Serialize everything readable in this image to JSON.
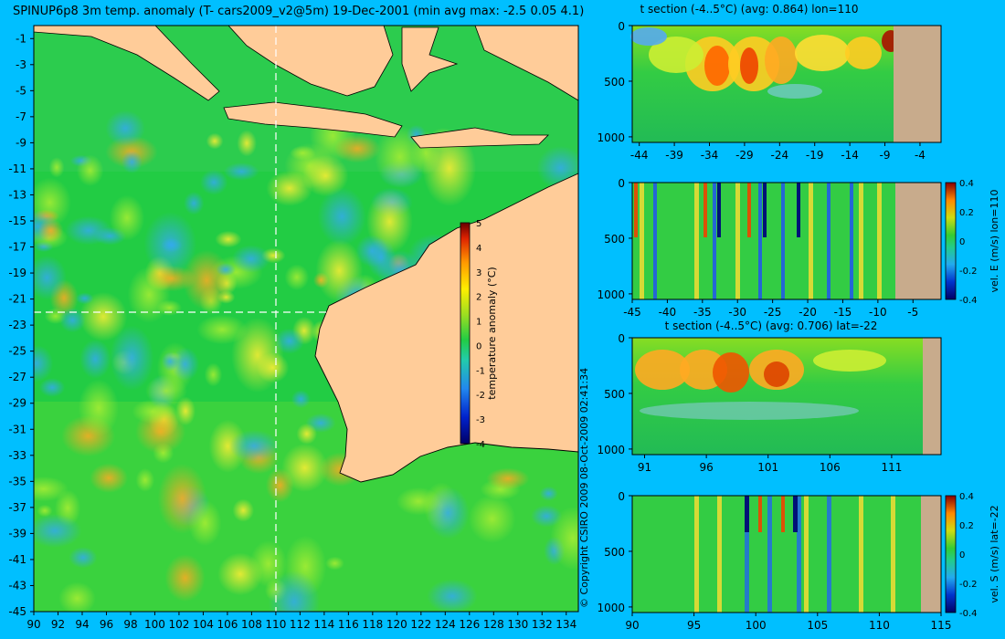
{
  "main_title": "SPINUP6p8 3m temp. anomaly (T- cars2009_v2@5m) 19-Dec-2001 (min avg max: -2.5 0.05 4.1)",
  "copyright": "© Copyright CSIRO 2009  08-Oct-2009 02:41:34",
  "colors": {
    "background": "#00bfff",
    "land": "#ffcc99",
    "ocean_base": "#22cc44",
    "section_land": "#c8ab8c",
    "crosshair": "#ffffff"
  },
  "chart_data": [
    {
      "type": "heatmap",
      "title": "SPINUP6p8 3m temp. anomaly (T- cars2009_v2@5m) 19-Dec-2001 (min avg max: -2.5 0.05 4.1)",
      "x_ticks": [
        "90",
        "92",
        "94",
        "96",
        "98",
        "100",
        "102",
        "104",
        "106",
        "108",
        "110",
        "112",
        "114",
        "116",
        "118",
        "120",
        "122",
        "124",
        "126",
        "128",
        "130",
        "132",
        "134"
      ],
      "y_ticks": [
        "-1",
        "-3",
        "-5",
        "-7",
        "-9",
        "-11",
        "-13",
        "-15",
        "-17",
        "-19",
        "-21",
        "-23",
        "-25",
        "-27",
        "-29",
        "-31",
        "-33",
        "-35",
        "-37",
        "-39",
        "-41",
        "-43",
        "-45"
      ],
      "xlim": [
        90,
        135
      ],
      "ylim": [
        -45,
        0
      ],
      "crosshair": {
        "lon": 110,
        "lat": -22
      },
      "colorbar": {
        "label": "temperature anomaly (°C)",
        "ticks": [
          "5",
          "4",
          "3",
          "2",
          "1",
          "0",
          "-1",
          "-2",
          "-3",
          "-4"
        ],
        "range": [
          -4,
          5
        ]
      }
    },
    {
      "type": "heatmap",
      "title": "t section (-4..5°C) (avg: 0.864) lon=110",
      "x_ticks": [
        "-44",
        "-39",
        "-34",
        "-29",
        "-24",
        "-19",
        "-14",
        "-9",
        "-4"
      ],
      "y_ticks": [
        "0",
        "500",
        "1000"
      ],
      "xlim": [
        -45,
        -1
      ],
      "ylim": [
        1050,
        0
      ]
    },
    {
      "type": "heatmap",
      "title": "",
      "x_ticks": [
        "-45",
        "-40",
        "-35",
        "-30",
        "-25",
        "-20",
        "-15",
        "-10",
        "-5"
      ],
      "y_ticks": [
        "0",
        "500",
        "1000"
      ],
      "xlim": [
        -45,
        -1
      ],
      "ylim": [
        1050,
        0
      ],
      "colorbar": {
        "label": "vel. E (m/s) lon=110",
        "ticks": [
          "0.4",
          "0.2",
          "0",
          "-0.2",
          "-0.4"
        ],
        "range": [
          -0.4,
          0.4
        ]
      }
    },
    {
      "type": "heatmap",
      "title": "t section (-4..5°C) (avg: 0.706) lat=-22",
      "x_ticks": [
        "91",
        "96",
        "101",
        "106",
        "111"
      ],
      "y_ticks": [
        "0",
        "500",
        "1000"
      ],
      "xlim": [
        90,
        115
      ],
      "ylim": [
        1050,
        0
      ]
    },
    {
      "type": "heatmap",
      "title": "",
      "x_ticks": [
        "90",
        "95",
        "100",
        "105",
        "110",
        "115"
      ],
      "y_ticks": [
        "0",
        "500",
        "1000"
      ],
      "xlim": [
        90,
        115
      ],
      "ylim": [
        1050,
        0
      ],
      "colorbar": {
        "label": "vel. S (m/s) lat=-22",
        "ticks": [
          "0.4",
          "0.2",
          "0",
          "-0.2",
          "-0.4"
        ],
        "range": [
          -0.4,
          0.4
        ]
      }
    }
  ]
}
